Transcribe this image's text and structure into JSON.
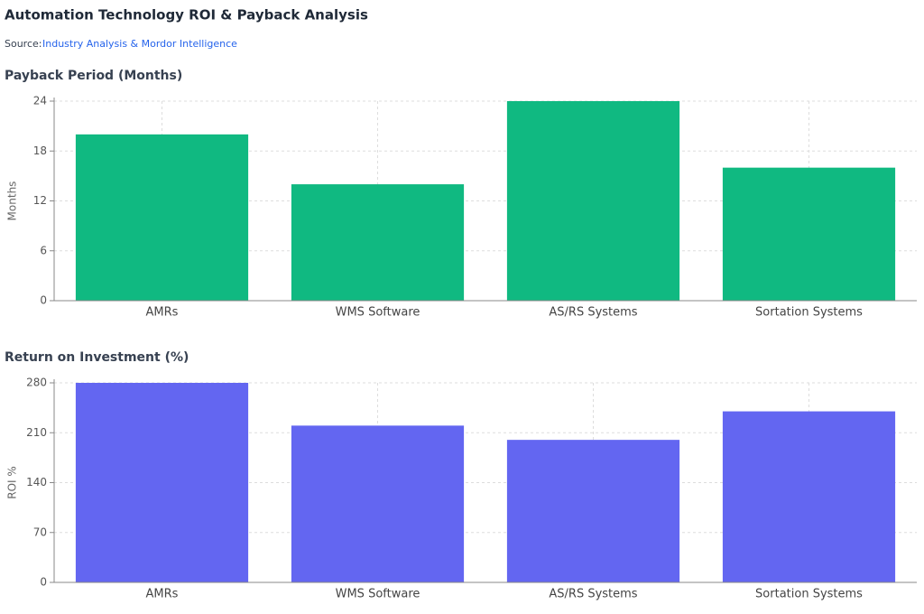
{
  "header": {
    "title": "Automation Technology ROI & Payback Analysis",
    "source_label": "Source:",
    "source_text": "Industry Analysis & Mordor Intelligence"
  },
  "chart_data": [
    {
      "type": "bar",
      "title": "Payback Period (Months)",
      "y_label": "Months",
      "categories": [
        "AMRs",
        "WMS Software",
        "AS/RS Systems",
        "Sortation Systems"
      ],
      "values": [
        20,
        14,
        24,
        16
      ],
      "color": "#10b981",
      "ylim": [
        0,
        24
      ],
      "yticks": [
        0,
        6,
        12,
        18,
        24
      ],
      "grid": true
    },
    {
      "type": "bar",
      "title": "Return on Investment (%)",
      "y_label": "ROI %",
      "categories": [
        "AMRs",
        "WMS Software",
        "AS/RS Systems",
        "Sortation Systems"
      ],
      "values": [
        280,
        220,
        200,
        240
      ],
      "color": "#6366f1",
      "ylim": [
        0,
        280
      ],
      "yticks": [
        0,
        70,
        140,
        210,
        280
      ],
      "grid": true
    }
  ]
}
